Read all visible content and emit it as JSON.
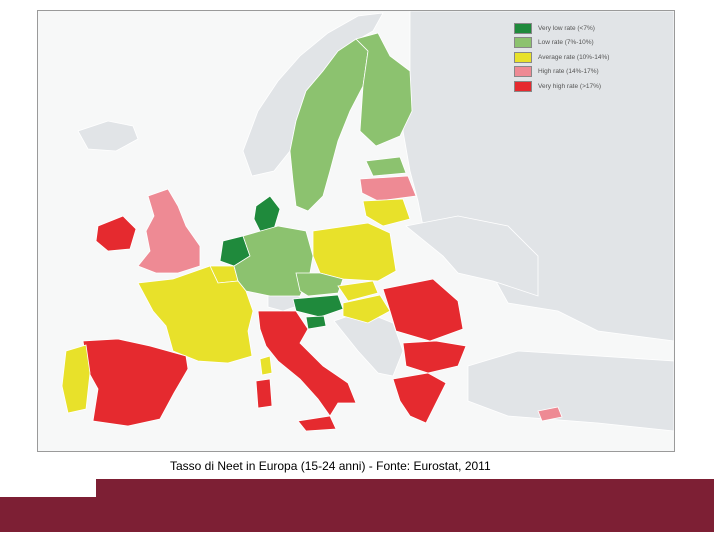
{
  "caption": "Tasso di Neet in Europa (15-24 anni) - Fonte: Eurostat, 2011",
  "legend": {
    "items": [
      {
        "label": "Very low rate (<7%)",
        "color": "#1f8a3c"
      },
      {
        "label": "Low rate (7%-10%)",
        "color": "#8cc26f"
      },
      {
        "label": "Average rate (10%-14%)",
        "color": "#e8e12a"
      },
      {
        "label": "High rate (14%-17%)",
        "color": "#ee8a94"
      },
      {
        "label": "Very high rate (>17%)",
        "color": "#e52a2f"
      }
    ]
  },
  "colors": {
    "sea": "#f7f8f8",
    "no_data": "#e1e4e7",
    "border": "#ffffff",
    "footer": "#7d1f34"
  }
}
